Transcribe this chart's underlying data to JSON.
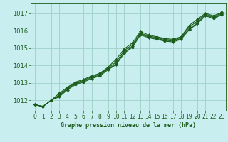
{
  "title": "Graphe pression niveau de la mer (hPa)",
  "background_color": "#c8eef0",
  "grid_color": "#a0d0c8",
  "line_color": "#1a5c1a",
  "marker_color": "#1a5c1a",
  "xlim": [
    -0.5,
    23.5
  ],
  "ylim": [
    1011.4,
    1017.6
  ],
  "yticks": [
    1012,
    1013,
    1014,
    1015,
    1016,
    1017
  ],
  "xticks": [
    0,
    1,
    2,
    3,
    4,
    5,
    6,
    7,
    8,
    9,
    10,
    11,
    12,
    13,
    14,
    15,
    16,
    17,
    18,
    19,
    20,
    21,
    22,
    23
  ],
  "series": [
    [
      1011.75,
      1011.65,
      1012.0,
      1012.4,
      1012.75,
      1013.05,
      1013.2,
      1013.4,
      1013.55,
      1013.9,
      1014.35,
      1014.95,
      1015.3,
      1015.95,
      1015.75,
      1015.65,
      1015.55,
      1015.5,
      1015.65,
      1016.3,
      1016.65,
      1017.0,
      1016.85,
      1017.05
    ],
    [
      1011.75,
      1011.65,
      1012.0,
      1012.3,
      1012.7,
      1013.0,
      1013.15,
      1013.35,
      1013.5,
      1013.85,
      1014.2,
      1014.85,
      1015.2,
      1015.85,
      1015.7,
      1015.6,
      1015.5,
      1015.45,
      1015.6,
      1016.2,
      1016.55,
      1016.95,
      1016.8,
      1017.0
    ],
    [
      1011.75,
      1011.65,
      1012.0,
      1012.25,
      1012.65,
      1012.95,
      1013.1,
      1013.3,
      1013.45,
      1013.8,
      1014.1,
      1014.75,
      1015.1,
      1015.8,
      1015.65,
      1015.55,
      1015.45,
      1015.4,
      1015.55,
      1016.1,
      1016.45,
      1016.9,
      1016.75,
      1016.95
    ],
    [
      1011.75,
      1011.65,
      1012.0,
      1012.2,
      1012.6,
      1012.9,
      1013.05,
      1013.25,
      1013.4,
      1013.75,
      1014.05,
      1014.7,
      1015.05,
      1015.75,
      1015.6,
      1015.5,
      1015.4,
      1015.35,
      1015.5,
      1016.05,
      1016.4,
      1016.85,
      1016.7,
      1016.9
    ]
  ]
}
